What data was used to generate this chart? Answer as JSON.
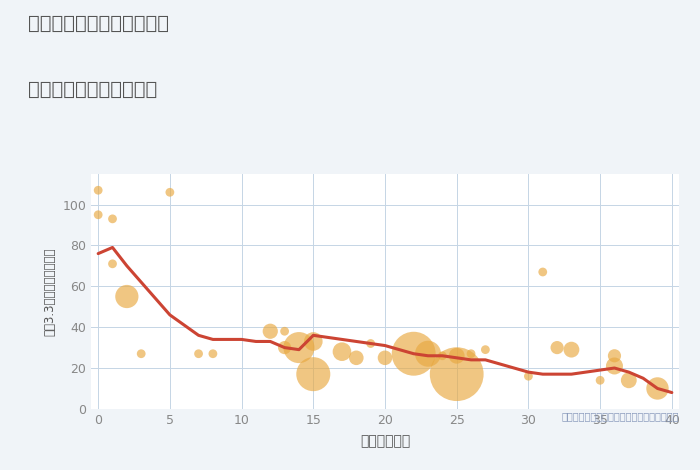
{
  "title_line1": "岐阜県土岐市土岐口北町の",
  "title_line2": "築年数別中古戸建て価格",
  "xlabel": "築年数（年）",
  "ylabel": "坪（3.3㎡）単価（万円）",
  "annotation": "円の大きさは、取引のあった物件面積を示す",
  "bg_color": "#f0f4f8",
  "plot_bg_color": "#ffffff",
  "grid_color": "#c5d5e5",
  "title_color": "#555555",
  "line_color": "#cc4433",
  "bubble_color_hex": "#e8a840",
  "bubble_alpha": 0.65,
  "annotation_color": "#8899bb",
  "tick_color": "#888888",
  "label_color": "#555555",
  "xlim": [
    -0.5,
    40.5
  ],
  "ylim": [
    0,
    115
  ],
  "xticks": [
    0,
    5,
    10,
    15,
    20,
    25,
    30,
    35,
    40
  ],
  "yticks": [
    0,
    20,
    40,
    60,
    80,
    100
  ],
  "scatter_x": [
    0,
    0,
    1,
    1,
    2,
    3,
    5,
    7,
    8,
    12,
    13,
    13,
    14,
    15,
    15,
    17,
    18,
    19,
    20,
    22,
    23,
    24,
    25,
    25,
    26,
    27,
    30,
    31,
    32,
    33,
    35,
    36,
    36,
    37,
    39
  ],
  "scatter_y": [
    107,
    95,
    93,
    71,
    55,
    27,
    106,
    27,
    27,
    38,
    30,
    38,
    30,
    17,
    33,
    28,
    25,
    32,
    25,
    27,
    27,
    26,
    17,
    26,
    27,
    29,
    16,
    67,
    30,
    29,
    14,
    26,
    21,
    14,
    10
  ],
  "scatter_sizes": [
    40,
    40,
    40,
    40,
    280,
    40,
    40,
    40,
    40,
    120,
    90,
    40,
    500,
    600,
    180,
    180,
    110,
    40,
    110,
    1000,
    350,
    40,
    1500,
    130,
    40,
    40,
    40,
    40,
    90,
    130,
    40,
    90,
    150,
    130,
    260
  ],
  "line_x": [
    0,
    1,
    2,
    3,
    5,
    7,
    8,
    10,
    11,
    12,
    13,
    14,
    15,
    16,
    17,
    18,
    19,
    20,
    21,
    22,
    23,
    24,
    25,
    26,
    27,
    28,
    29,
    30,
    31,
    32,
    33,
    34,
    35,
    36,
    37,
    38,
    39,
    40
  ],
  "line_y": [
    76,
    79,
    70,
    62,
    46,
    36,
    34,
    34,
    33,
    33,
    30,
    29,
    36,
    35,
    34,
    33,
    32,
    31,
    29,
    27,
    26,
    26,
    25,
    24,
    24,
    22,
    20,
    18,
    17,
    17,
    17,
    18,
    19,
    20,
    18,
    15,
    10,
    8
  ]
}
